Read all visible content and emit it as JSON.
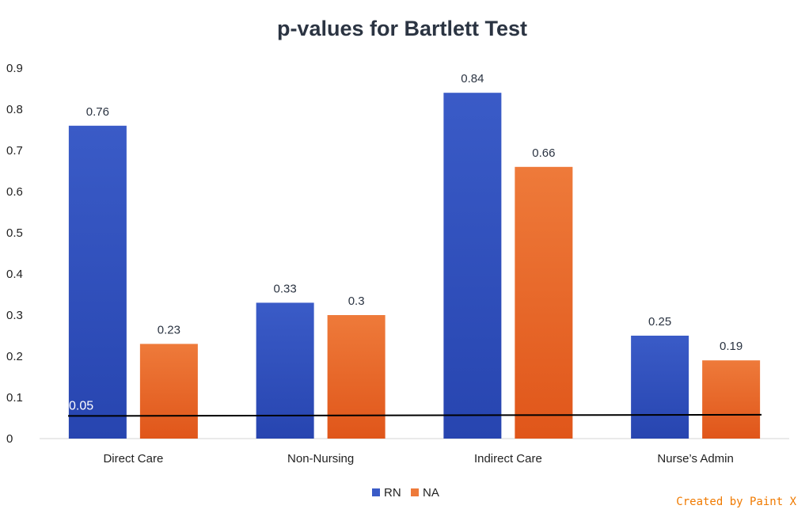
{
  "chart_data": {
    "type": "bar",
    "title": "p-values for Bartlett Test",
    "categories": [
      "Direct Care",
      "Non-Nursing",
      "Indirect Care",
      "Nurse’s Admin"
    ],
    "series": [
      {
        "name": "RN",
        "values": [
          0.76,
          0.33,
          0.84,
          0.25
        ],
        "color": "#3a5bc7",
        "color_bottom": "#2745b0"
      },
      {
        "name": "NA",
        "values": [
          0.23,
          0.3,
          0.66,
          0.19
        ],
        "color": "#ee7a3a",
        "color_bottom": "#e0561a"
      }
    ],
    "yticks": [
      "0",
      "0.1",
      "0.2",
      "0.3",
      "0.4",
      "0.5",
      "0.6",
      "0.7",
      "0.8",
      "0.9"
    ],
    "ylim": [
      0,
      0.9
    ],
    "grid": false,
    "legend": "bottom-center",
    "reference_line": {
      "label": "0.05",
      "y_start": 0.055,
      "y_end": 0.058,
      "color": "#000000"
    }
  },
  "watermark": "Created by Paint X"
}
